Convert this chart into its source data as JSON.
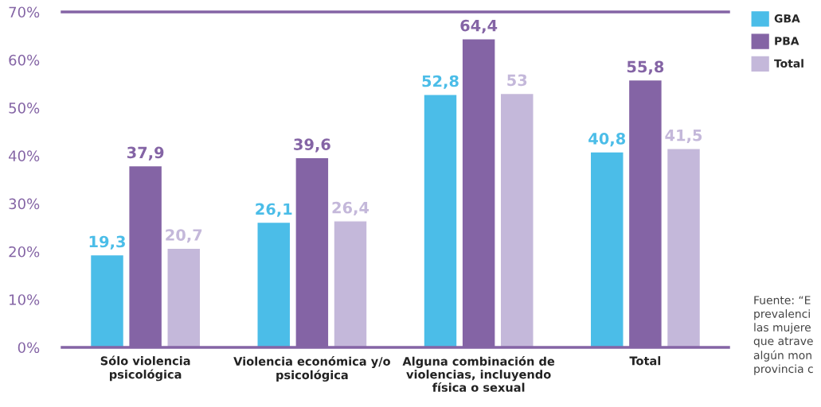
{
  "chart_data": {
    "type": "bar",
    "categories": [
      "Sólo violencia\npsicológica",
      "Violencia económica y/o\npsicológica",
      "Alguna combinación de\nviolencias, incluyendo\nfísica o sexual",
      "Total"
    ],
    "series": [
      {
        "name": "GBA",
        "color": "#4bbde8",
        "values": [
          19.3,
          26.1,
          52.8,
          40.8
        ],
        "value_labels": [
          "19,3",
          "26,1",
          "52,8",
          "40,8"
        ]
      },
      {
        "name": "PBA",
        "color": "#8464a5",
        "values": [
          37.9,
          39.6,
          64.4,
          55.8
        ],
        "value_labels": [
          "37,9",
          "39,6",
          "64,4",
          "55,8"
        ]
      },
      {
        "name": "Total",
        "color": "#c4b8da",
        "values": [
          20.7,
          26.4,
          53,
          41.5
        ],
        "value_labels": [
          "20,7",
          "26,4",
          "53",
          "41,5"
        ]
      }
    ],
    "ylim": [
      0,
      70
    ],
    "yticks": [
      {
        "value": 0,
        "label": "0%"
      },
      {
        "value": 10,
        "label": "10%"
      },
      {
        "value": 20,
        "label": "20%"
      },
      {
        "value": 30,
        "label": "30%"
      },
      {
        "value": 40,
        "label": "40%"
      },
      {
        "value": 50,
        "label": "50%"
      },
      {
        "value": 60,
        "label": "60%"
      },
      {
        "value": 70,
        "label": "70%"
      }
    ],
    "grid": false,
    "legend": "top right",
    "annotations": [
      "Fuente: “E\nprevalenci\nlas mujere\nque atrave\nalgún mon\nprovincia c"
    ]
  }
}
